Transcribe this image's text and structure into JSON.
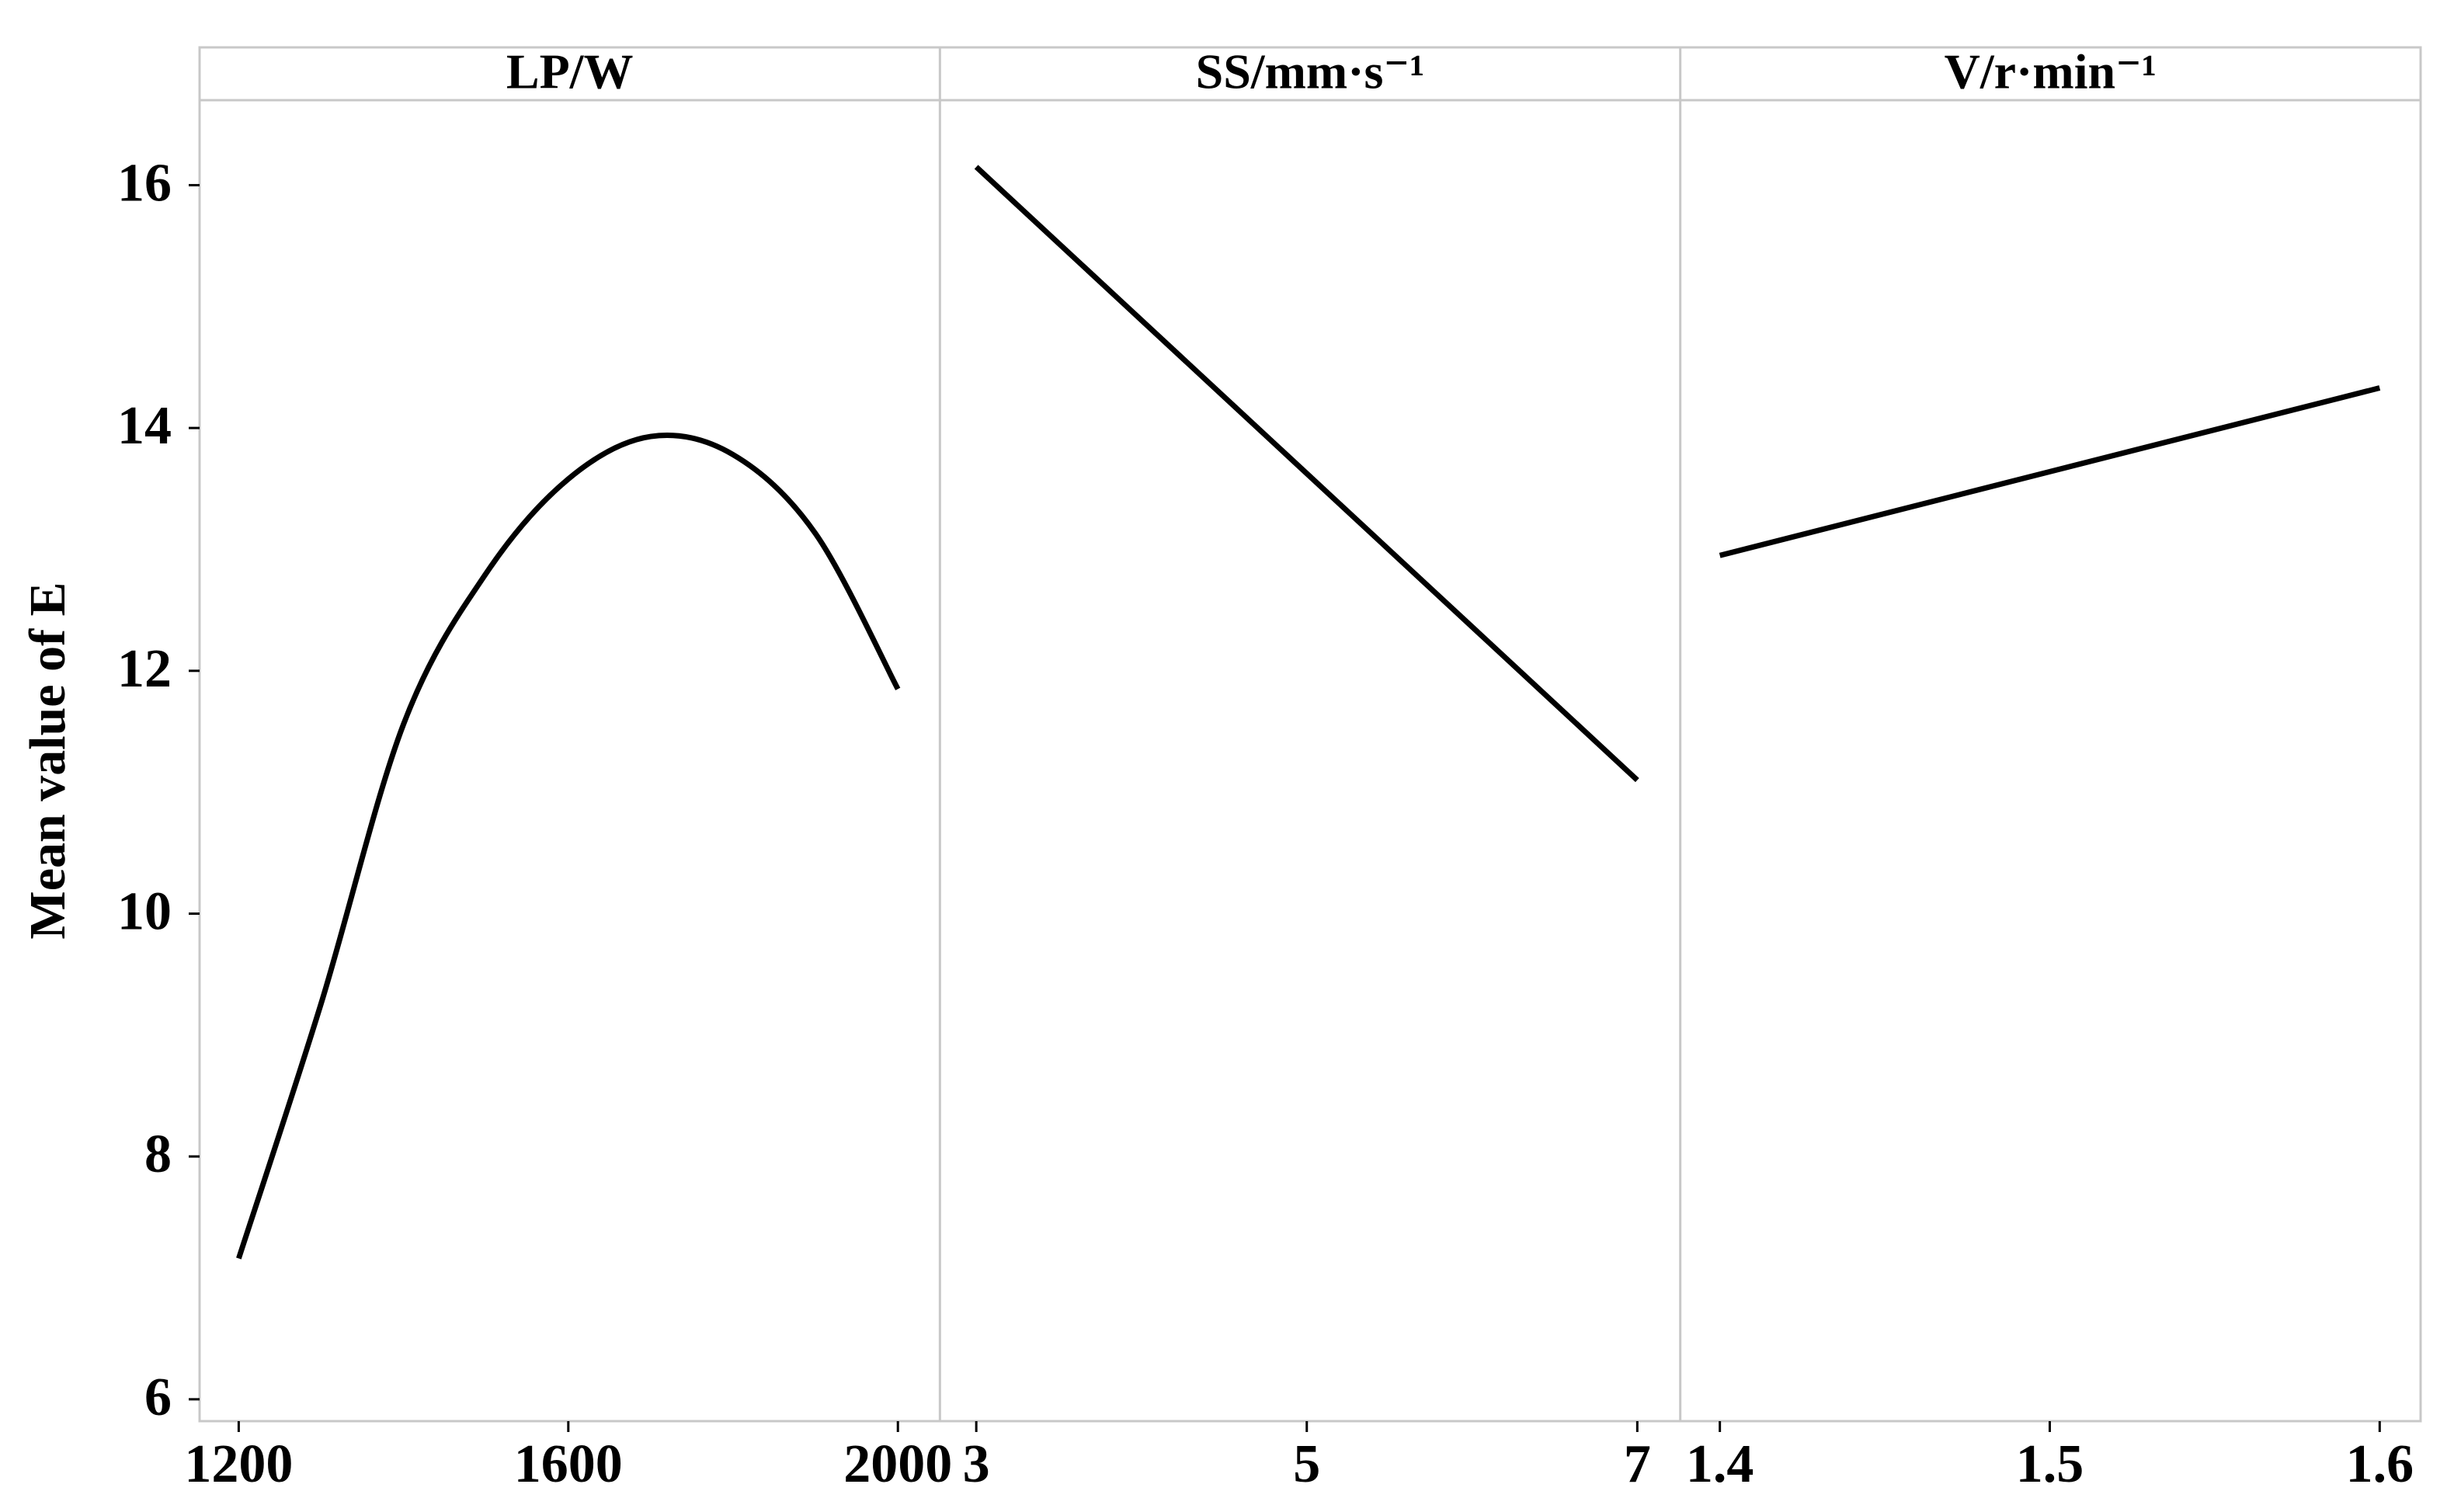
{
  "chart_data": [
    {
      "type": "line",
      "title": "LP/W",
      "y_label": "Mean value of E",
      "x": [
        1200,
        1300,
        1400,
        1500,
        1600,
        1700,
        1800,
        1900,
        2000
      ],
      "values": [
        7.16,
        9.26,
        11.56,
        12.8,
        13.58,
        13.93,
        13.78,
        13.13,
        11.85
      ],
      "color": "#000000",
      "xlim": [
        1152.5,
        2051
      ],
      "xticks": [
        1200,
        1600,
        2000
      ],
      "ylim": [
        5.82,
        16.7
      ],
      "yticks": [
        6,
        8,
        10,
        12,
        14,
        16
      ]
    },
    {
      "type": "line",
      "title": "SS/mm·s⁻¹",
      "x": [
        3,
        7
      ],
      "values": [
        16.15,
        11.1
      ],
      "color": "#000000",
      "xlim": [
        2.78,
        7.26
      ],
      "xticks": [
        3,
        5,
        7
      ],
      "ylim": [
        5.82,
        16.7
      ]
    },
    {
      "type": "line",
      "title": "V/r·min⁻¹",
      "x": [
        1.4,
        1.6
      ],
      "values": [
        12.95,
        14.33
      ],
      "color": "#000000",
      "xlim": [
        1.388,
        1.6124
      ],
      "xticks": [
        1.4,
        1.5,
        1.6
      ],
      "ylim": [
        5.82,
        16.7
      ]
    }
  ]
}
